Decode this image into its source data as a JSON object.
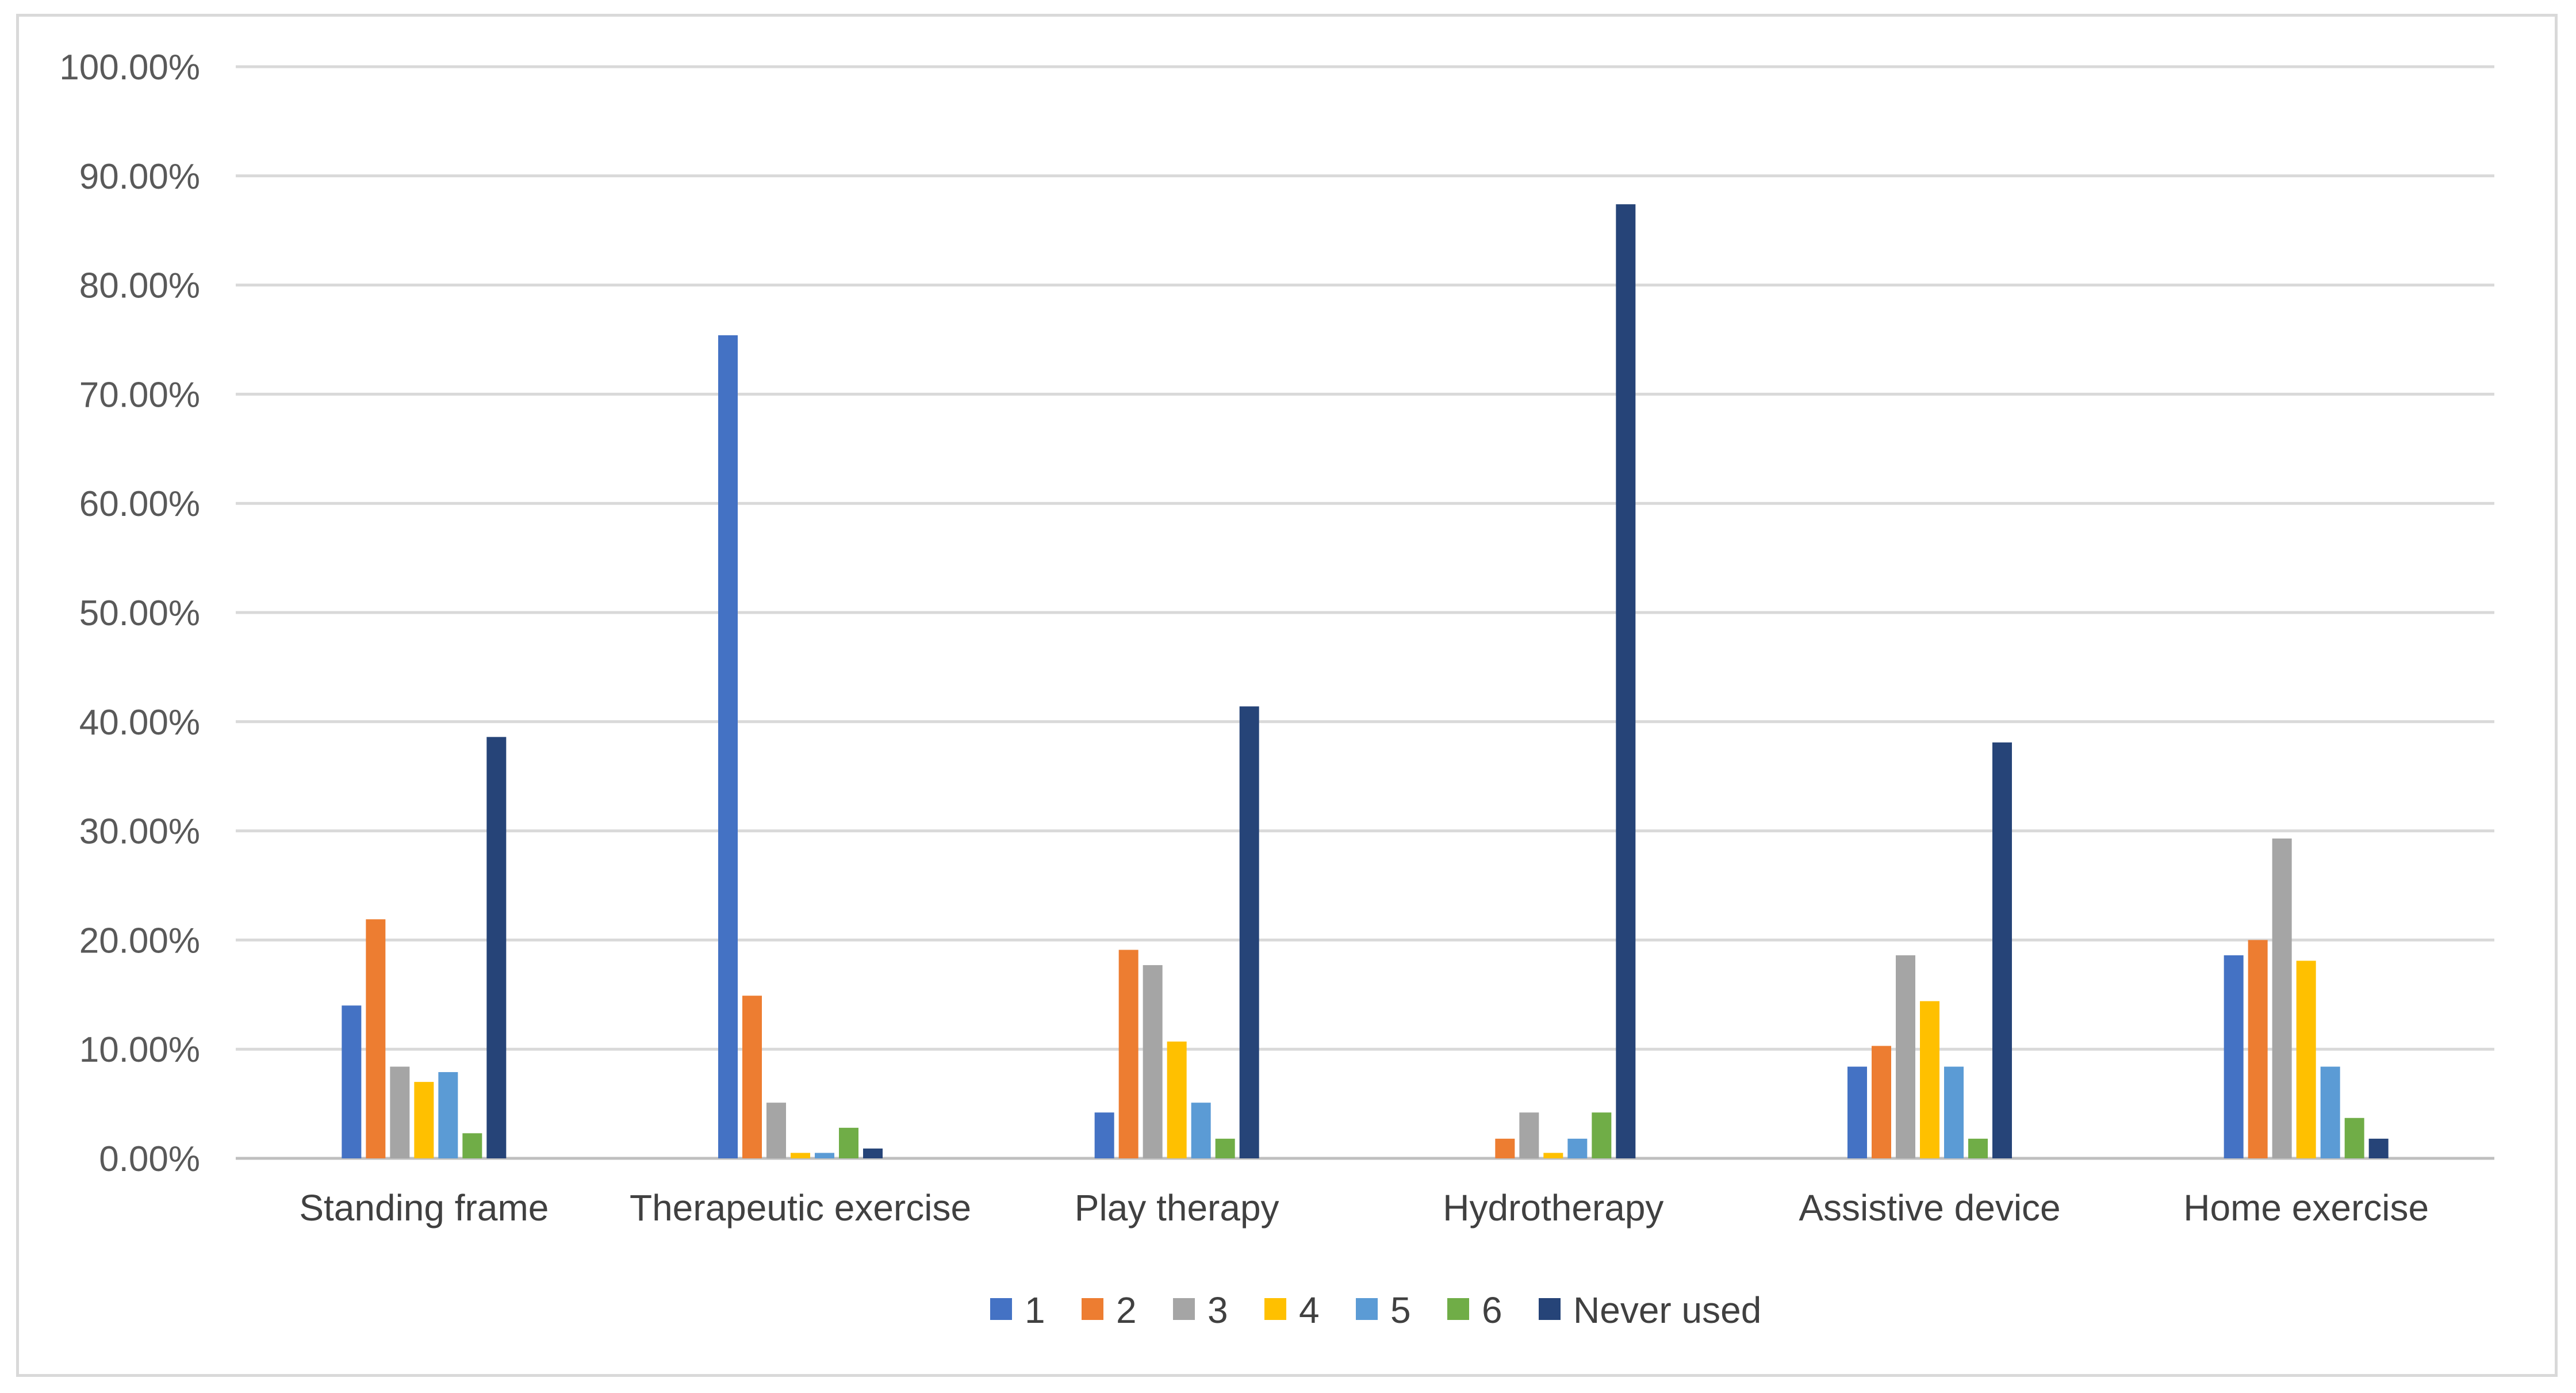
{
  "chart_data": {
    "type": "bar",
    "title": "",
    "xlabel": "",
    "ylabel": "",
    "ylim": [
      0,
      100
    ],
    "grid": true,
    "legend_position": "bottom",
    "y_ticks": [
      "0.00%",
      "10.00%",
      "20.00%",
      "30.00%",
      "40.00%",
      "50.00%",
      "60.00%",
      "70.00%",
      "80.00%",
      "90.00%",
      "100.00%"
    ],
    "categories": [
      "Standing frame",
      "Therapeutic exercise",
      "Play therapy",
      "Hydrotherapy",
      "Assistive device",
      "Home exercise"
    ],
    "series": [
      {
        "name": "1",
        "color": "#4472c4",
        "values": [
          14.0,
          75.4,
          4.2,
          0.0,
          8.4,
          18.6
        ]
      },
      {
        "name": "2",
        "color": "#ed7d31",
        "values": [
          21.9,
          14.9,
          19.1,
          1.8,
          10.3,
          20.0
        ]
      },
      {
        "name": "3",
        "color": "#a5a5a5",
        "values": [
          8.4,
          5.1,
          17.7,
          4.2,
          18.6,
          29.3
        ]
      },
      {
        "name": "4",
        "color": "#ffc000",
        "values": [
          7.0,
          0.5,
          10.7,
          0.5,
          14.4,
          18.1
        ]
      },
      {
        "name": "5",
        "color": "#5b9bd5",
        "values": [
          7.9,
          0.5,
          5.1,
          1.8,
          8.4,
          8.4
        ]
      },
      {
        "name": "6",
        "color": "#70ad47",
        "values": [
          2.3,
          2.8,
          1.8,
          4.2,
          1.8,
          3.7
        ]
      },
      {
        "name": "Never used",
        "color": "#264478",
        "values": [
          38.6,
          0.9,
          41.4,
          87.4,
          38.1,
          1.8
        ]
      }
    ]
  }
}
